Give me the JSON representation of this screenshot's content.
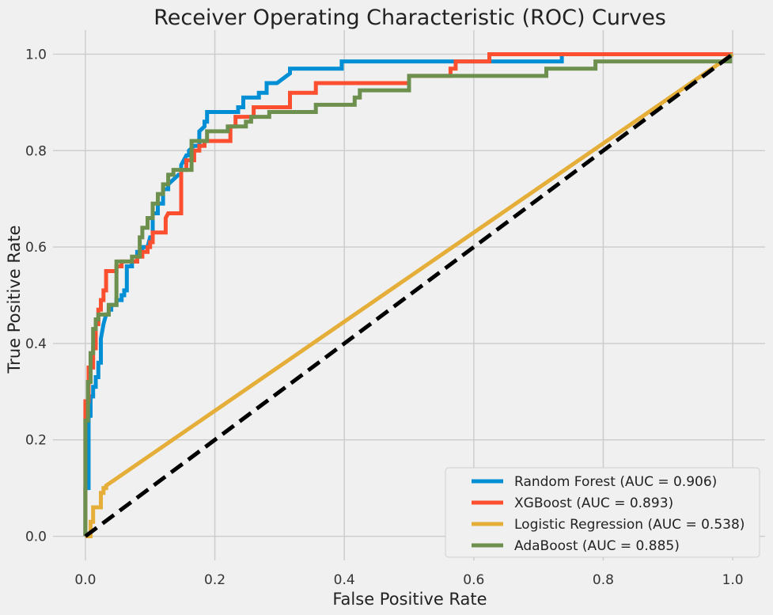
{
  "chart_data": {
    "type": "line",
    "title": "Receiver Operating Characteristic (ROC) Curves",
    "xlabel": "False Positive Rate",
    "ylabel": "True Positive Rate",
    "xlim": [
      -0.05,
      1.05
    ],
    "ylim": [
      -0.05,
      1.05
    ],
    "x_ticks": [
      "0.0",
      "0.2",
      "0.4",
      "0.6",
      "0.8",
      "1.0"
    ],
    "y_ticks": [
      "0.0",
      "0.2",
      "0.4",
      "0.6",
      "0.8",
      "1.0"
    ],
    "grid": true,
    "legend_position": "bottom-right",
    "reference_line": {
      "x": [
        0,
        1
      ],
      "y": [
        0,
        1
      ],
      "style": "dashed",
      "color": "#000000"
    },
    "series": [
      {
        "name": "Random Forest (AUC = 0.906)",
        "color": "#008fd5",
        "x": [
          0.0,
          0.0,
          0.005,
          0.005,
          0.008,
          0.008,
          0.012,
          0.012,
          0.016,
          0.016,
          0.02,
          0.02,
          0.024,
          0.024,
          0.028,
          0.032,
          0.036,
          0.036,
          0.04,
          0.04,
          0.048,
          0.048,
          0.056,
          0.056,
          0.06,
          0.06,
          0.064,
          0.064,
          0.072,
          0.072,
          0.08,
          0.08,
          0.088,
          0.088,
          0.096,
          0.1,
          0.104,
          0.104,
          0.112,
          0.112,
          0.12,
          0.12,
          0.128,
          0.128,
          0.136,
          0.144,
          0.148,
          0.148,
          0.152,
          0.156,
          0.16,
          0.16,
          0.168,
          0.176,
          0.176,
          0.184,
          0.184,
          0.188,
          0.188,
          0.236,
          0.236,
          0.244,
          0.244,
          0.268,
          0.268,
          0.28,
          0.28,
          0.296,
          0.316,
          0.316,
          0.396,
          0.396,
          0.736,
          0.736,
          1.0
        ],
        "y": [
          0.0,
          0.1,
          0.1,
          0.25,
          0.25,
          0.29,
          0.29,
          0.31,
          0.31,
          0.33,
          0.33,
          0.36,
          0.36,
          0.41,
          0.44,
          0.46,
          0.46,
          0.47,
          0.47,
          0.48,
          0.48,
          0.49,
          0.49,
          0.5,
          0.5,
          0.51,
          0.51,
          0.56,
          0.56,
          0.57,
          0.57,
          0.59,
          0.59,
          0.6,
          0.6,
          0.62,
          0.62,
          0.67,
          0.67,
          0.69,
          0.69,
          0.72,
          0.72,
          0.73,
          0.74,
          0.75,
          0.75,
          0.77,
          0.78,
          0.79,
          0.79,
          0.8,
          0.81,
          0.81,
          0.84,
          0.85,
          0.86,
          0.86,
          0.88,
          0.88,
          0.89,
          0.89,
          0.91,
          0.91,
          0.92,
          0.92,
          0.94,
          0.94,
          0.96,
          0.97,
          0.97,
          0.985,
          0.985,
          1.0,
          1.0
        ]
      },
      {
        "name": "XGBoost (AUC = 0.893)",
        "color": "#fc4f30",
        "x": [
          0.0,
          0.0,
          0.005,
          0.005,
          0.012,
          0.012,
          0.016,
          0.016,
          0.02,
          0.02,
          0.024,
          0.024,
          0.028,
          0.028,
          0.032,
          0.032,
          0.048,
          0.048,
          0.056,
          0.056,
          0.08,
          0.08,
          0.088,
          0.088,
          0.096,
          0.096,
          0.1,
          0.1,
          0.104,
          0.104,
          0.124,
          0.124,
          0.128,
          0.148,
          0.148,
          0.156,
          0.156,
          0.168,
          0.168,
          0.176,
          0.176,
          0.184,
          0.184,
          0.224,
          0.224,
          0.232,
          0.232,
          0.26,
          0.26,
          0.316,
          0.316,
          0.356,
          0.356,
          0.5,
          0.5,
          0.564,
          0.564,
          0.572,
          0.572,
          0.624,
          0.624,
          1.0
        ],
        "y": [
          0.0,
          0.28,
          0.28,
          0.35,
          0.35,
          0.39,
          0.39,
          0.44,
          0.44,
          0.47,
          0.47,
          0.49,
          0.49,
          0.51,
          0.51,
          0.55,
          0.55,
          0.56,
          0.56,
          0.57,
          0.57,
          0.58,
          0.58,
          0.59,
          0.59,
          0.6,
          0.6,
          0.61,
          0.61,
          0.63,
          0.63,
          0.66,
          0.67,
          0.67,
          0.76,
          0.76,
          0.78,
          0.78,
          0.8,
          0.8,
          0.81,
          0.81,
          0.82,
          0.82,
          0.85,
          0.85,
          0.87,
          0.87,
          0.89,
          0.89,
          0.92,
          0.92,
          0.94,
          0.94,
          0.955,
          0.955,
          0.97,
          0.97,
          0.985,
          0.985,
          1.0,
          1.0
        ]
      },
      {
        "name": "Logistic Regression (AUC = 0.538)",
        "color": "#e5ae38",
        "x": [
          0.0,
          0.008,
          0.008,
          0.012,
          0.012,
          0.024,
          0.024,
          0.028,
          0.028,
          0.032,
          0.032,
          1.0
        ],
        "y": [
          0.0,
          0.0,
          0.03,
          0.03,
          0.06,
          0.06,
          0.09,
          0.09,
          0.1,
          0.1,
          0.105,
          1.0
        ]
      },
      {
        "name": "AdaBoost (AUC = 0.885)",
        "color": "#6d904f",
        "x": [
          0.0,
          0.0,
          0.004,
          0.004,
          0.008,
          0.008,
          0.012,
          0.012,
          0.016,
          0.016,
          0.02,
          0.02,
          0.036,
          0.036,
          0.048,
          0.048,
          0.072,
          0.072,
          0.084,
          0.084,
          0.088,
          0.088,
          0.096,
          0.096,
          0.104,
          0.104,
          0.112,
          0.112,
          0.12,
          0.12,
          0.128,
          0.128,
          0.136,
          0.136,
          0.164,
          0.164,
          0.188,
          0.188,
          0.22,
          0.22,
          0.248,
          0.248,
          0.256,
          0.256,
          0.284,
          0.284,
          0.356,
          0.356,
          0.416,
          0.416,
          0.424,
          0.424,
          0.5,
          0.5,
          0.712,
          0.712,
          0.788,
          0.788,
          0.996,
          0.996
        ],
        "y": [
          0.0,
          0.24,
          0.24,
          0.32,
          0.32,
          0.38,
          0.38,
          0.43,
          0.43,
          0.45,
          0.45,
          0.46,
          0.46,
          0.48,
          0.48,
          0.57,
          0.57,
          0.58,
          0.58,
          0.62,
          0.62,
          0.64,
          0.64,
          0.66,
          0.66,
          0.69,
          0.69,
          0.71,
          0.71,
          0.73,
          0.73,
          0.75,
          0.75,
          0.76,
          0.76,
          0.82,
          0.82,
          0.84,
          0.84,
          0.85,
          0.85,
          0.86,
          0.86,
          0.87,
          0.87,
          0.88,
          0.88,
          0.895,
          0.895,
          0.91,
          0.91,
          0.925,
          0.925,
          0.955,
          0.955,
          0.97,
          0.97,
          0.985,
          0.985,
          1.0
        ]
      }
    ]
  }
}
